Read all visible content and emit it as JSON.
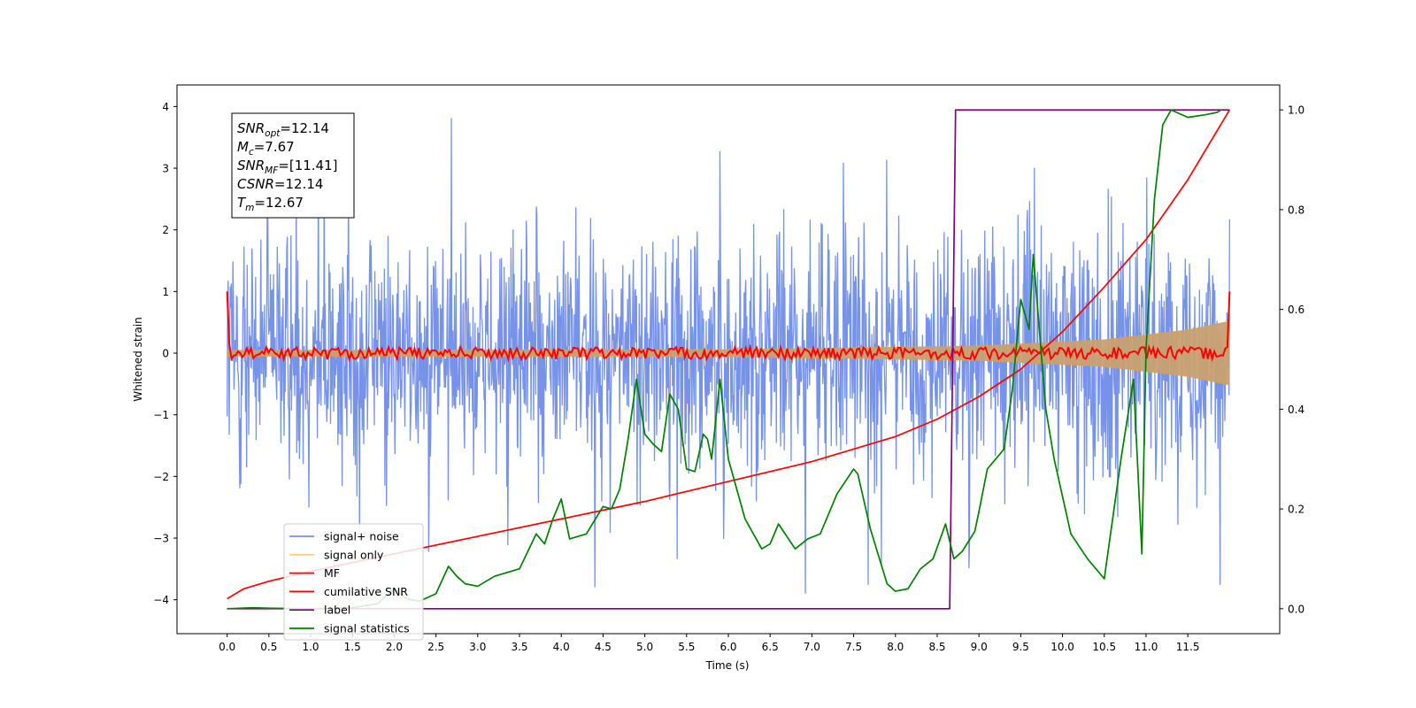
{
  "chart_data": {
    "type": "line",
    "xlabel": "Time (s)",
    "ylabel": "Whitened strain",
    "xlim": [
      -0.6,
      12.6
    ],
    "ylim": [
      -4.55,
      4.35
    ],
    "y2lim": [
      -0.05,
      1.05
    ],
    "x_ticks": [
      "0.0",
      "0.5",
      "1.0",
      "1.5",
      "2.0",
      "2.5",
      "3.0",
      "3.5",
      "4.0",
      "4.5",
      "5.0",
      "5.5",
      "6.0",
      "6.5",
      "7.0",
      "7.5",
      "8.0",
      "8.5",
      "9.0",
      "9.5",
      "10.0",
      "10.5",
      "11.0",
      "11.5"
    ],
    "y_ticks": [
      "−4",
      "−3",
      "−2",
      "−1",
      "0",
      "1",
      "2",
      "3",
      "4"
    ],
    "y2_ticks": [
      "0.0",
      "0.2",
      "0.4",
      "0.6",
      "0.8",
      "1.0"
    ],
    "grid": false,
    "legend_position": "lower-left",
    "info_box": {
      "lines": [
        {
          "sym": "SNR",
          "sub": "opt",
          "value": "=12.14"
        },
        {
          "sym": "M",
          "sub": "c",
          "value": "=7.67"
        },
        {
          "sym": "SNR",
          "sub": "MF",
          "value": "=[11.41]"
        },
        {
          "sym": "CSNR",
          "sub": "",
          "value": "=12.14"
        },
        {
          "sym": "T",
          "sub": "m",
          "value": "=12.67"
        }
      ]
    },
    "series": [
      {
        "name": "signal+ noise",
        "color": "#4169e1",
        "axis": "left",
        "style": "noise-band",
        "x_range": [
          0.0,
          12.0
        ],
        "peak_min": -3.9,
        "peak_max": 3.9,
        "typical_amplitude": 2.3
      },
      {
        "name": "signal only",
        "color": "#ffa500",
        "axis": "left",
        "style": "chirp-envelope",
        "x_range": [
          0.0,
          12.0
        ],
        "envelope_x": [
          0.0,
          6.0,
          9.0,
          10.5,
          11.5,
          12.0
        ],
        "envelope_y": [
          0.05,
          0.06,
          0.12,
          0.22,
          0.38,
          0.52
        ]
      },
      {
        "name": "MF",
        "color": "#ff0000",
        "axis": "left",
        "style": "jitter",
        "x_range": [
          0.0,
          12.0
        ],
        "start_value": 1.0,
        "end_value": 1.0,
        "jitter_amplitude": 0.1
      },
      {
        "name": "cumilative SNR",
        "color": "#ff0000",
        "axis": "right",
        "x": [
          0.0,
          0.2,
          0.5,
          1.0,
          2.0,
          3.0,
          4.0,
          5.0,
          6.0,
          7.0,
          8.0,
          8.5,
          9.0,
          9.5,
          10.0,
          10.5,
          11.0,
          11.5,
          12.0
        ],
        "y": [
          0.02,
          0.04,
          0.055,
          0.075,
          0.11,
          0.145,
          0.18,
          0.215,
          0.255,
          0.295,
          0.345,
          0.38,
          0.425,
          0.48,
          0.555,
          0.645,
          0.74,
          0.86,
          1.0
        ]
      },
      {
        "name": "label",
        "color": "#800080",
        "axis": "right",
        "x": [
          0.0,
          8.65,
          8.72,
          12.0
        ],
        "y": [
          0.0,
          0.0,
          1.0,
          1.0
        ]
      },
      {
        "name": "signal statistics",
        "color": "#008000",
        "axis": "right",
        "x": [
          0.0,
          0.3,
          0.5,
          1.0,
          1.5,
          1.8,
          2.0,
          2.15,
          2.3,
          2.5,
          2.65,
          2.75,
          2.85,
          3.0,
          3.2,
          3.3,
          3.5,
          3.7,
          3.8,
          3.9,
          4.0,
          4.1,
          4.3,
          4.5,
          4.6,
          4.7,
          4.8,
          4.9,
          5.0,
          5.1,
          5.2,
          5.3,
          5.4,
          5.5,
          5.6,
          5.7,
          5.75,
          5.8,
          5.9,
          6.0,
          6.2,
          6.4,
          6.5,
          6.6,
          6.8,
          6.95,
          7.1,
          7.3,
          7.5,
          7.55,
          7.7,
          7.9,
          8.0,
          8.15,
          8.3,
          8.45,
          8.6,
          8.7,
          8.8,
          8.95,
          9.0,
          9.1,
          9.2,
          9.3,
          9.4,
          9.5,
          9.6,
          9.65,
          9.8,
          9.9,
          10.1,
          10.3,
          10.5,
          10.7,
          10.85,
          10.95,
          11.0,
          11.1,
          11.2,
          11.3,
          11.5,
          11.7,
          11.85,
          11.9
        ],
        "y": [
          0.0,
          0.002,
          0.001,
          0.0,
          0.002,
          0.01,
          0.04,
          0.02,
          0.015,
          0.03,
          0.085,
          0.065,
          0.05,
          0.045,
          0.065,
          0.07,
          0.08,
          0.15,
          0.13,
          0.18,
          0.22,
          0.14,
          0.15,
          0.205,
          0.2,
          0.24,
          0.34,
          0.46,
          0.35,
          0.33,
          0.315,
          0.43,
          0.4,
          0.28,
          0.275,
          0.35,
          0.34,
          0.3,
          0.46,
          0.3,
          0.18,
          0.12,
          0.13,
          0.17,
          0.12,
          0.14,
          0.15,
          0.23,
          0.28,
          0.27,
          0.16,
          0.05,
          0.035,
          0.04,
          0.08,
          0.1,
          0.17,
          0.1,
          0.115,
          0.155,
          0.195,
          0.28,
          0.3,
          0.32,
          0.44,
          0.62,
          0.56,
          0.71,
          0.4,
          0.3,
          0.15,
          0.1,
          0.06,
          0.3,
          0.46,
          0.11,
          0.52,
          0.82,
          0.97,
          1.0,
          0.985,
          0.99,
          0.995,
          1.0
        ]
      }
    ]
  }
}
